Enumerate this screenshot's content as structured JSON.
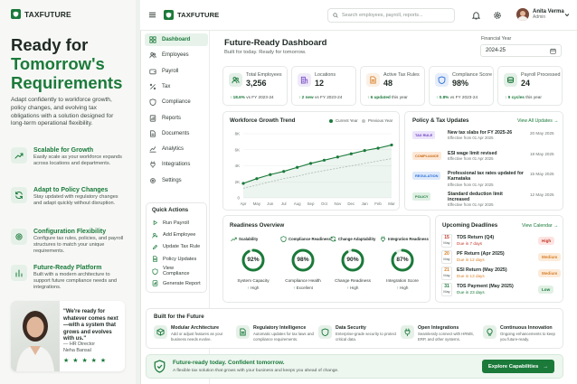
{
  "brand": {
    "name": "TAXFUTURE"
  },
  "hero": {
    "line1": "Ready for",
    "line2": "Tomorrow's",
    "line3": "Requirements",
    "paragraph": "Adapt confidently to workforce growth, policy changes, and evolving tax obligations with a solution designed for long-term operational flexibility."
  },
  "features": [
    {
      "title": "Scalable for Growth",
      "desc": "Easily scale as your workforce expands across locations and departments.",
      "icon": "chart-up-icon"
    },
    {
      "title": "Adapt to Policy Changes",
      "desc": "Stay updated with regulatory changes and adapt quickly without disruption.",
      "icon": "refresh-icon"
    },
    {
      "title": "Configuration Flexibility",
      "desc": "Configure tax rules, policies, and payroll structures to match your unique requirements.",
      "icon": "gear-icon"
    },
    {
      "title": "Future-Ready Platform",
      "desc": "Built with a modern architecture to support future compliance needs and integrations.",
      "icon": "bar-chart-icon"
    }
  ],
  "testimonial": {
    "quote": "\"We're ready for whatever comes next—with a system that grows and evolves with us.\"",
    "role": "— HR Director",
    "person": "Neha Bansal",
    "stars": "★ ★ ★ ★ ★"
  },
  "topbar": {
    "search_placeholder": "Search employees, payroll, reports...",
    "user_name": "Anita Verma",
    "user_role": "Admin"
  },
  "nav": [
    {
      "label": "Dashboard",
      "icon": "grid-icon",
      "active": true
    },
    {
      "label": "Employees",
      "icon": "users-icon"
    },
    {
      "label": "Payroll",
      "icon": "wallet-icon"
    },
    {
      "label": "Tax",
      "icon": "percent-icon"
    },
    {
      "label": "Compliance",
      "icon": "shield-icon"
    },
    {
      "label": "Reports",
      "icon": "report-icon"
    },
    {
      "label": "Documents",
      "icon": "document-icon"
    },
    {
      "label": "Analytics",
      "icon": "analytics-icon"
    },
    {
      "label": "Integrations",
      "icon": "plug-icon"
    },
    {
      "label": "Settings",
      "icon": "gear-icon"
    }
  ],
  "quick_actions": {
    "title": "Quick Actions",
    "items": [
      "Run Payroll",
      "Add Employee",
      "Update Tax Rule",
      "Policy Updates",
      "View Compliance",
      "Generate Report"
    ]
  },
  "dashboard": {
    "title": "Future-Ready Dashboard",
    "subtitle": "Built for today. Ready for tomorrow.",
    "fy_label": "Financial Year",
    "fy_value": "2024-25"
  },
  "kpis": [
    {
      "label": "Total Employees",
      "value": "3,256",
      "delta": "18.6%",
      "suffix": "vs FY 2023-24",
      "icon": "users-icon",
      "color": "#1b7a3a"
    },
    {
      "label": "Locations",
      "value": "12",
      "delta": "2 new",
      "suffix": "vs FY 2023-24",
      "icon": "building-icon",
      "color": "#7b4fc9"
    },
    {
      "label": "Active Tax Rules",
      "value": "48",
      "delta": "6 updated",
      "suffix": "this year",
      "icon": "document-icon",
      "color": "#d9822b"
    },
    {
      "label": "Compliance Score",
      "value": "98%",
      "delta": "0.8%",
      "suffix": "vs FY 2023-24",
      "icon": "shield-icon",
      "color": "#2c6fd6"
    },
    {
      "label": "Payroll Processed",
      "value": "24",
      "delta": "9 cycles",
      "suffix": "this year",
      "icon": "coins-icon",
      "color": "#1b7a3a"
    }
  ],
  "growth_chart": {
    "title": "Workforce Growth Trend",
    "legend_current": "Current Year",
    "legend_previous": "Previous Year"
  },
  "chart_data": {
    "type": "line",
    "title": "Workforce Growth Trend",
    "categories": [
      "Apr",
      "May",
      "Jun",
      "Jul",
      "Aug",
      "Sep",
      "Oct",
      "Nov",
      "Dec",
      "Jan",
      "Feb",
      "Mar"
    ],
    "yticks": [
      "0",
      "2K",
      "4K",
      "6K",
      "8K"
    ],
    "ylim": [
      0,
      8000
    ],
    "series": [
      {
        "name": "Current Year",
        "values": [
          1800,
          2400,
          2900,
          3300,
          3800,
          4300,
          4700,
          5100,
          5500,
          5900,
          6200,
          6600
        ],
        "color": "#1b7a3a"
      },
      {
        "name": "Previous Year",
        "values": [
          1200,
          1600,
          2000,
          2400,
          2700,
          3100,
          3400,
          3700,
          4000,
          4300,
          4600,
          4900
        ],
        "color": "#bfc6c2"
      }
    ]
  },
  "policy_updates": {
    "title": "Policy & Tax Updates",
    "link": "View All Updates",
    "items": [
      {
        "tag": "TAX RULE",
        "title": "New tax slabs for FY 2025-26",
        "sub": "Effective from 01 Apr 2025",
        "date": "20 May 2025",
        "bg": "#ece4fb",
        "fg": "#6b3fc0"
      },
      {
        "tag": "COMPLIANCE",
        "title": "ESI wage limit revised",
        "sub": "Effective from 01 Apr 2025",
        "date": "18 May 2025",
        "bg": "#fde8d6",
        "fg": "#c96a16"
      },
      {
        "tag": "REGULATION",
        "title": "Professional tax rates updated for Karnataka",
        "sub": "Effective from 01 Apr 2025",
        "date": "15 May 2025",
        "bg": "#dde9fb",
        "fg": "#2c6fd6"
      },
      {
        "tag": "POLICY",
        "title": "Standard deduction limit increased",
        "sub": "Effective from 01 Apr 2025",
        "date": "12 May 2025",
        "bg": "#dff0e3",
        "fg": "#1b7a3a"
      }
    ]
  },
  "readiness": {
    "title": "Readiness Overview",
    "items": [
      {
        "label": "Scalability",
        "pct": 92,
        "value": "92%",
        "caption": "System Capacity",
        "status": "High",
        "icon": "chart-up-icon"
      },
      {
        "label": "Compliance Readiness",
        "pct": 98,
        "value": "98%",
        "caption": "Compliance Health",
        "status": "Excellent",
        "icon": "shield-icon"
      },
      {
        "label": "Change Adaptability",
        "pct": 90,
        "value": "90%",
        "caption": "Change Readiness",
        "status": "High",
        "icon": "refresh-icon"
      },
      {
        "label": "Integration Readiness",
        "pct": 87,
        "value": "87%",
        "caption": "Integration Score",
        "status": "High",
        "icon": "plug-icon"
      }
    ]
  },
  "deadlines": {
    "title": "Upcoming Deadlines",
    "link": "View Calendar",
    "items": [
      {
        "day": "15",
        "month": "May",
        "title": "TDS Return (Q4)",
        "due": "Due in 7 days",
        "priority": "High",
        "tone": "red"
      },
      {
        "day": "20",
        "month": "May",
        "title": "PF Return (Apr 2025)",
        "due": "Due in 12 days",
        "priority": "Medium",
        "tone": "orange"
      },
      {
        "day": "21",
        "month": "May",
        "title": "ESI Return (May 2025)",
        "due": "Due in 13 days",
        "priority": "Medium",
        "tone": "orange"
      },
      {
        "day": "31",
        "month": "May",
        "title": "TDS Payment (May 2025)",
        "due": "Due in 23 days",
        "priority": "Low",
        "tone": "green"
      }
    ]
  },
  "built_future": {
    "title": "Built for the Future",
    "items": [
      {
        "title": "Modular Architecture",
        "desc": "Add or adjust features as your business needs evolve.",
        "icon": "cube-icon"
      },
      {
        "title": "Regulatory Intelligence",
        "desc": "Automatic updates for tax laws and compliance requirements.",
        "icon": "document-icon"
      },
      {
        "title": "Data Security",
        "desc": "Enterprise-grade security to protect critical data.",
        "icon": "shield-icon"
      },
      {
        "title": "Open Integrations",
        "desc": "Seamlessly connect with HRMS, ERP, and other systems.",
        "icon": "plug-icon"
      },
      {
        "title": "Continuous Innovation",
        "desc": "Ongoing enhancements to keep you future-ready.",
        "icon": "bulb-icon"
      }
    ]
  },
  "banner": {
    "title": "Future-ready today. Confident tomorrow.",
    "desc": "A flexible tax solution that grows with your business and keeps you ahead of change.",
    "button": "Explore Capabilities"
  }
}
